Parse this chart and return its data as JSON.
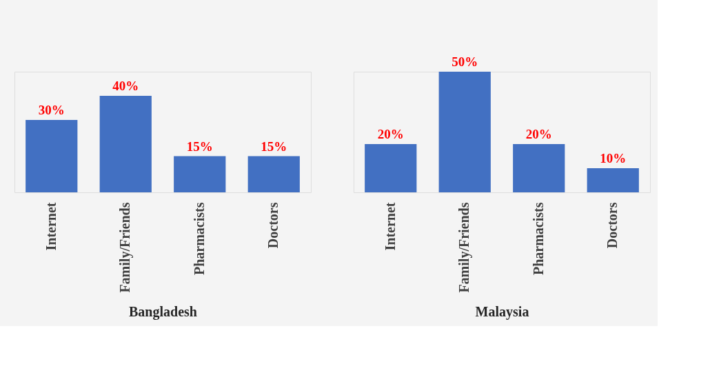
{
  "chart_data": [
    {
      "type": "bar",
      "xlabel": "Bangladesh",
      "categories": [
        "Internet",
        "Family/Friends",
        "Pharmacists",
        "Doctors"
      ],
      "series": [
        {
          "color": "#4270c2",
          "values": [
            30,
            40,
            15,
            15
          ],
          "value_labels": [
            "30%",
            "40%",
            "15%",
            "15%"
          ]
        }
      ],
      "grid": false
    },
    {
      "type": "bar",
      "xlabel": "Malaysia",
      "categories": [
        "Internet",
        "Family/Friends",
        "Pharmacists",
        "Doctors"
      ],
      "series": [
        {
          "color": "#4270c2",
          "values": [
            20,
            50,
            20,
            10
          ],
          "value_labels": [
            "20%",
            "50%",
            "20%",
            "10%"
          ]
        }
      ],
      "grid": false
    }
  ]
}
